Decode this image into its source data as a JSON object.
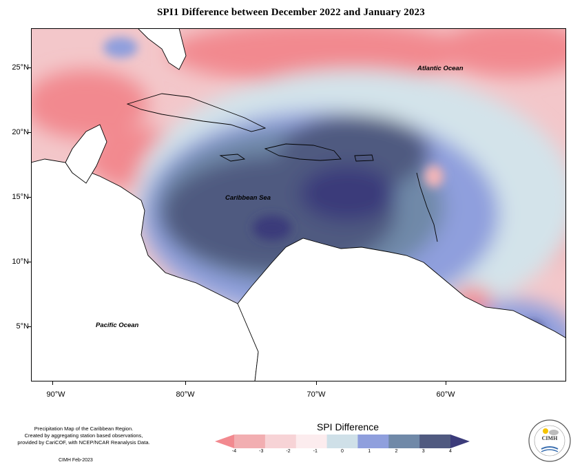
{
  "title": "SPI1 Difference between December 2022 and January 2023",
  "y_axis_labels": [
    "25°N",
    "20°N",
    "15°N",
    "10°N",
    "5°N"
  ],
  "x_axis_labels": [
    "90°W",
    "80°W",
    "70°W",
    "60°W"
  ],
  "ocean_labels": {
    "atlantic": "Atlantic Ocean",
    "caribbean": "Caribbean Sea",
    "pacific": "Pacific Ocean"
  },
  "credit_lines": [
    "Precipitation Map of the Caribbean Region.",
    "Created by aggregating station based observations,",
    "provided by CariCOF, with NCEP/NCAR Reanalysis Data."
  ],
  "credit_date": "CIMH Feb-2023",
  "legend": {
    "title": "SPI Difference",
    "labels": [
      "-4",
      "-3",
      "-2",
      "-1",
      "0",
      "1",
      "2",
      "3",
      "4"
    ],
    "colors": [
      "#f2898f",
      "#f2aeb1",
      "#f7d3d6",
      "#fcecee",
      "#cfe0e8",
      "#8f9fdd",
      "#7089a8",
      "#505a80",
      "#3b3b7a"
    ]
  },
  "logo_text": "CIMH",
  "colors": {
    "strong_dry": "#f2898f",
    "dry": "#f2b5b8",
    "light_dry": "#fbe3e5",
    "neutral": "#d3e3ea",
    "wet": "#8f9fdd",
    "wetter": "#7089a8",
    "very_wet": "#505a80",
    "extreme_wet": "#3b3b7a",
    "land": "#ffffff"
  }
}
